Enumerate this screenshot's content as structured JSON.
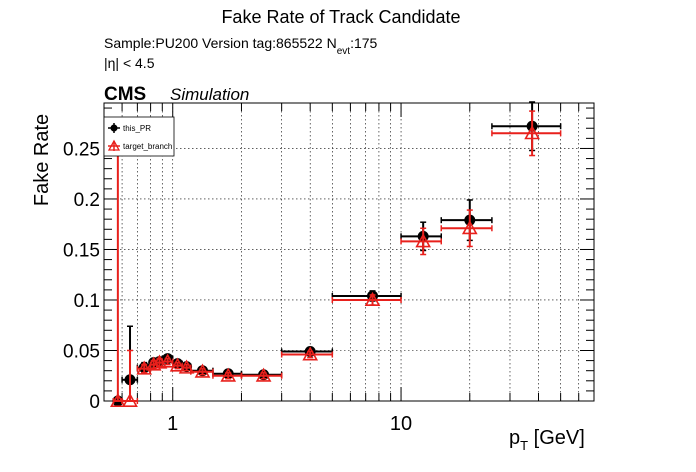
{
  "header": {
    "title": "Fake Rate of Track Candidate",
    "sample_line": "Sample:PU200   Version tag:865522  N",
    "nevt_sub": "evt",
    "nevt_value": ":175",
    "eta_cut": "|η| < 4.5"
  },
  "branding": {
    "cms": "CMS",
    "simulation": "Simulation"
  },
  "chart_data": {
    "type": "scatter",
    "title": "Fake Rate of Track Candidate",
    "xlabel_main": "p",
    "xlabel_sub": "T",
    "xlabel_unit": " [GeV]",
    "ylabel": "Fake Rate",
    "x_scale": "log",
    "xlim": [
      0.5,
      70
    ],
    "ylim": [
      0,
      0.295
    ],
    "x_tick_labels": [
      {
        "value": 1,
        "label": "1"
      },
      {
        "value": 10,
        "label": "10"
      }
    ],
    "y_ticks": [
      {
        "value": 0,
        "label": "0"
      },
      {
        "value": 0.05,
        "label": "0.05"
      },
      {
        "value": 0.1,
        "label": "0.1"
      },
      {
        "value": 0.15,
        "label": "0.15"
      },
      {
        "value": 0.2,
        "label": "0.2"
      },
      {
        "value": 0.25,
        "label": "0.25"
      }
    ],
    "grid": true,
    "legend_position": "top-left",
    "series": [
      {
        "name": "this_PR",
        "color": "#000000",
        "marker": "filled-circle",
        "points": [
          {
            "x": 0.575,
            "xlo": 0.55,
            "xhi": 0.6,
            "y": 0.0,
            "err": 0.0
          },
          {
            "x": 0.65,
            "xlo": 0.6,
            "xhi": 0.7,
            "y": 0.021,
            "err": 0.053
          },
          {
            "x": 0.75,
            "xlo": 0.7,
            "xhi": 0.8,
            "y": 0.033,
            "err": 0.005
          },
          {
            "x": 0.825,
            "xlo": 0.8,
            "xhi": 0.85,
            "y": 0.038,
            "err": 0.004
          },
          {
            "x": 0.875,
            "xlo": 0.85,
            "xhi": 0.9,
            "y": 0.039,
            "err": 0.004
          },
          {
            "x": 0.95,
            "xlo": 0.9,
            "xhi": 1.0,
            "y": 0.042,
            "err": 0.003
          },
          {
            "x": 1.05,
            "xlo": 1.0,
            "xhi": 1.1,
            "y": 0.037,
            "err": 0.003
          },
          {
            "x": 1.15,
            "xlo": 1.1,
            "xhi": 1.2,
            "y": 0.034,
            "err": 0.003
          },
          {
            "x": 1.35,
            "xlo": 1.2,
            "xhi": 1.5,
            "y": 0.03,
            "err": 0.003
          },
          {
            "x": 1.75,
            "xlo": 1.5,
            "xhi": 2.0,
            "y": 0.027,
            "err": 0.003
          },
          {
            "x": 2.5,
            "xlo": 2.0,
            "xhi": 3.0,
            "y": 0.026,
            "err": 0.003
          },
          {
            "x": 4.0,
            "xlo": 3.0,
            "xhi": 5.0,
            "y": 0.049,
            "err": 0.003
          },
          {
            "x": 7.5,
            "xlo": 5.0,
            "xhi": 10.0,
            "y": 0.104,
            "err": 0.005
          },
          {
            "x": 12.5,
            "xlo": 10.0,
            "xhi": 15.0,
            "y": 0.163,
            "err": 0.014
          },
          {
            "x": 20.0,
            "xlo": 15.0,
            "xhi": 25.0,
            "y": 0.179,
            "err": 0.02
          },
          {
            "x": 37.5,
            "xlo": 25.0,
            "xhi": 50.0,
            "y": 0.272,
            "err": 0.024
          }
        ]
      },
      {
        "name": "target_branch",
        "color": "#e8201c",
        "marker": "open-triangle",
        "points": [
          {
            "x": 0.575,
            "xlo": 0.55,
            "xhi": 0.6,
            "y": 0.0,
            "err": 0.26
          },
          {
            "x": 0.65,
            "xlo": 0.6,
            "xhi": 0.7,
            "y": 0.0,
            "err": 0.05
          },
          {
            "x": 0.75,
            "xlo": 0.7,
            "xhi": 0.8,
            "y": 0.032,
            "err": 0.004
          },
          {
            "x": 0.825,
            "xlo": 0.8,
            "xhi": 0.85,
            "y": 0.036,
            "err": 0.004
          },
          {
            "x": 0.875,
            "xlo": 0.85,
            "xhi": 0.9,
            "y": 0.038,
            "err": 0.004
          },
          {
            "x": 0.95,
            "xlo": 0.9,
            "xhi": 1.0,
            "y": 0.039,
            "err": 0.003
          },
          {
            "x": 1.05,
            "xlo": 1.0,
            "xhi": 1.1,
            "y": 0.035,
            "err": 0.003
          },
          {
            "x": 1.15,
            "xlo": 1.1,
            "xhi": 1.2,
            "y": 0.033,
            "err": 0.003
          },
          {
            "x": 1.35,
            "xlo": 1.2,
            "xhi": 1.5,
            "y": 0.029,
            "err": 0.003
          },
          {
            "x": 1.75,
            "xlo": 1.5,
            "xhi": 2.0,
            "y": 0.025,
            "err": 0.003
          },
          {
            "x": 2.5,
            "xlo": 2.0,
            "xhi": 3.0,
            "y": 0.025,
            "err": 0.003
          },
          {
            "x": 4.0,
            "xlo": 3.0,
            "xhi": 5.0,
            "y": 0.046,
            "err": 0.003
          },
          {
            "x": 7.5,
            "xlo": 5.0,
            "xhi": 10.0,
            "y": 0.1,
            "err": 0.005
          },
          {
            "x": 12.5,
            "xlo": 10.0,
            "xhi": 15.0,
            "y": 0.158,
            "err": 0.013
          },
          {
            "x": 20.0,
            "xlo": 15.0,
            "xhi": 25.0,
            "y": 0.171,
            "err": 0.018
          },
          {
            "x": 37.5,
            "xlo": 25.0,
            "xhi": 50.0,
            "y": 0.265,
            "err": 0.022
          }
        ]
      }
    ]
  }
}
